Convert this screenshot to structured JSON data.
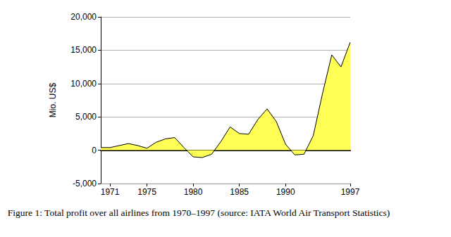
{
  "chart_data": {
    "type": "area",
    "y_label": "Mio. US$",
    "caption": "Figure 1: Total profit over all airlines from 1970–1997 (source: IATA World Air Transport Statistics)",
    "x": [
      1970,
      1971,
      1972,
      1973,
      1974,
      1975,
      1976,
      1977,
      1978,
      1979,
      1980,
      1981,
      1982,
      1983,
      1984,
      1985,
      1986,
      1987,
      1988,
      1989,
      1990,
      1991,
      1992,
      1993,
      1994,
      1995,
      1996,
      1997
    ],
    "values": [
      400,
      400,
      700,
      1000,
      700,
      300,
      1200,
      1700,
      1900,
      400,
      -1000,
      -1100,
      -600,
      1300,
      3500,
      2500,
      2400,
      4600,
      6200,
      4300,
      900,
      -700,
      -600,
      2200,
      8500,
      14300,
      12500,
      16200
    ],
    "color": "#ffff55",
    "xlim": [
      1970,
      1997
    ],
    "xticks": [
      1971,
      1975,
      1980,
      1985,
      1990,
      1997
    ],
    "ylim": [
      -5000,
      20000
    ],
    "yticks": [
      {
        "value": -5000,
        "label": "-5,000"
      },
      0,
      {
        "value": 5000,
        "label": "5,000"
      },
      {
        "value": 10000,
        "label": "10,000"
      },
      {
        "value": 15000,
        "label": "15,000"
      },
      {
        "value": 20000,
        "label": "20,000"
      }
    ],
    "grid": true
  }
}
